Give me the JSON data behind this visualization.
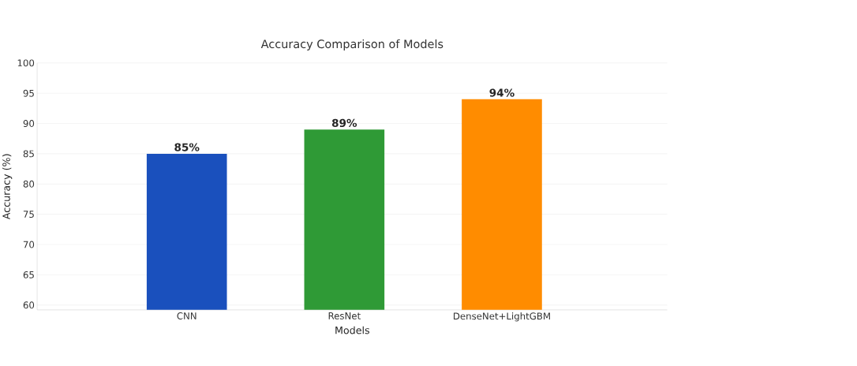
{
  "chart_data": {
    "type": "bar",
    "title": "Accuracy Comparison of Models",
    "xlabel": "Models",
    "ylabel": "Accuracy (%)",
    "categories": [
      "CNN",
      "ResNet",
      "DenseNet+LightGBM"
    ],
    "values": [
      85,
      89,
      94
    ],
    "colors": [
      "#1a50bd",
      "#2f9a36",
      "#ff8c00"
    ],
    "value_labels": [
      "85%",
      "89%",
      "94%"
    ],
    "ylim": [
      59.2,
      100
    ],
    "yticks": [
      60,
      65,
      70,
      75,
      80,
      85,
      90,
      95,
      100
    ],
    "grid": "y"
  }
}
